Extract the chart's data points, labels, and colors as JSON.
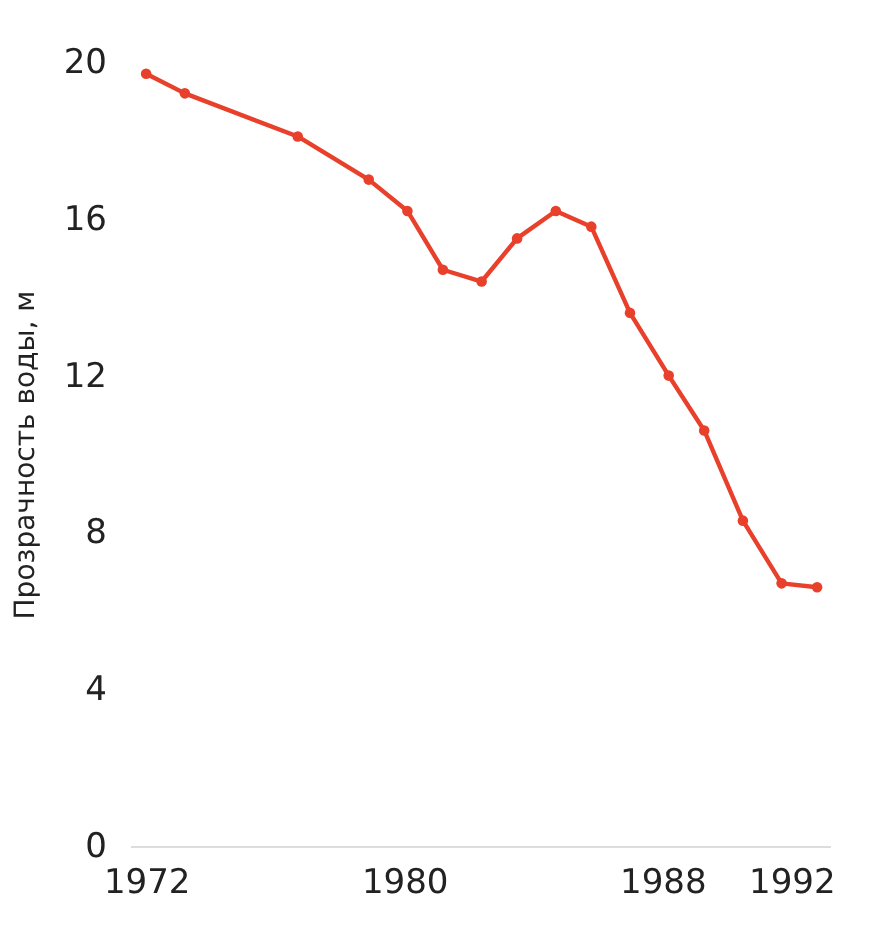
{
  "chart_data": {
    "type": "line",
    "ylabel": "Прозрачность воды, м",
    "marker": "circle",
    "line_style": "solid",
    "grid": false,
    "x": [
      1972,
      1973.2,
      1976.7,
      1978.9,
      1980.1,
      1981.2,
      1982.4,
      1983.5,
      1984.7,
      1985.8,
      1987.0,
      1988.2,
      1989.3,
      1990.5,
      1991.7,
      1992.8
    ],
    "series": [
      {
        "color": "#e8402a",
        "values": [
          19.7,
          19.2,
          18.1,
          17.0,
          16.2,
          14.7,
          14.4,
          15.5,
          16.2,
          15.8,
          13.6,
          12.0,
          10.6,
          8.3,
          6.7,
          6.6
        ]
      }
    ],
    "xlim": [
      1971.5,
      1993.2
    ],
    "xticks": [
      1972,
      1980,
      1988,
      1992
    ],
    "ylim": [
      0,
      20
    ],
    "yticks": [
      0,
      4,
      8,
      12,
      16,
      20
    ]
  }
}
